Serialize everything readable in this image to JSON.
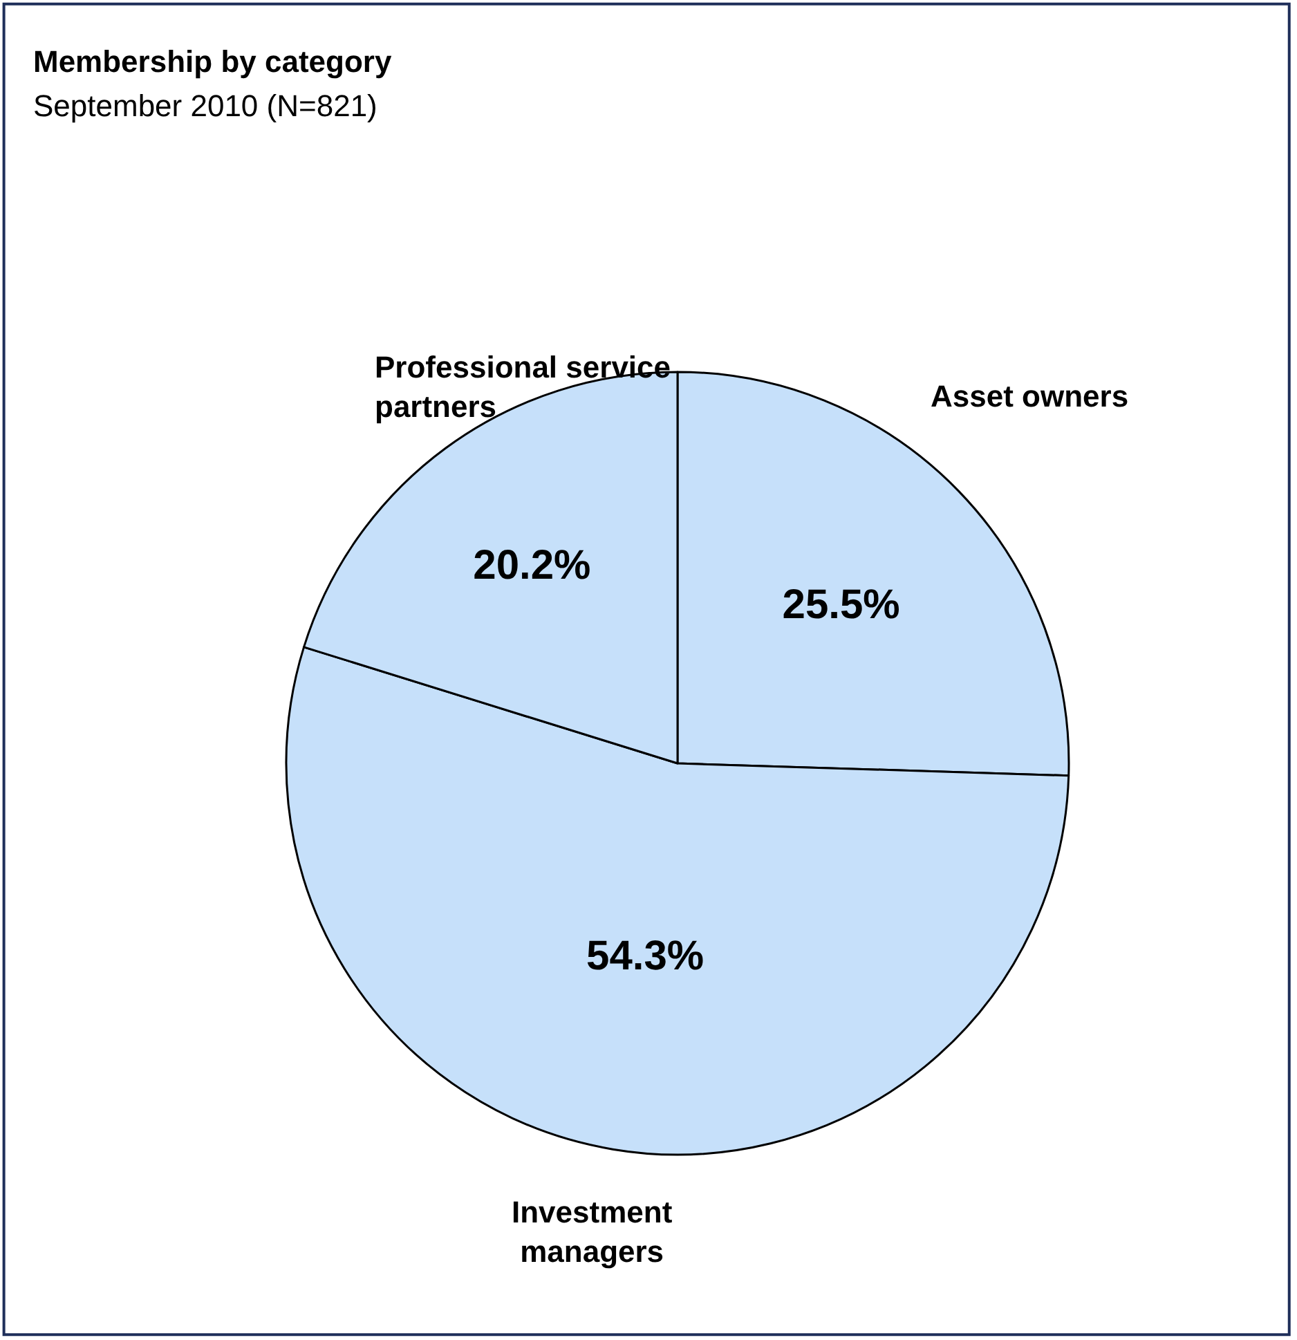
{
  "chart_data": {
    "type": "pie",
    "title": "Membership by category",
    "subtitle": "September 2010 (N=821)",
    "categories": [
      "Asset owners",
      "Investment managers",
      "Professional service partners"
    ],
    "values": [
      25.5,
      54.3,
      20.2
    ],
    "value_labels": [
      "25.5%",
      "54.3%",
      "20.2%"
    ],
    "colors": [
      "#c6e0fa",
      "#c6e0fa",
      "#c6e0fa"
    ]
  }
}
